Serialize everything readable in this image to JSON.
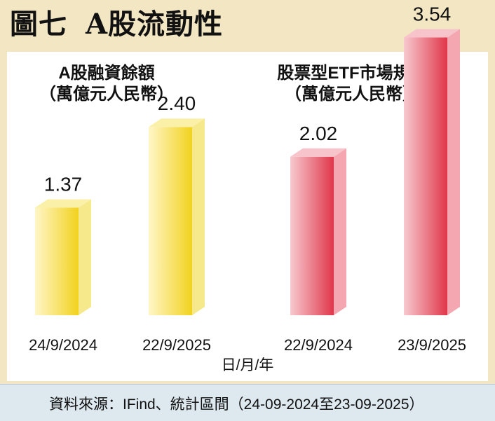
{
  "figure": {
    "title_prefix": "圖七",
    "title_main": "A股流動性",
    "x_unit": "日/月/年",
    "source": "資料來源：IFind、統計區間（24-09-2024至23-09-2025）"
  },
  "colors": {
    "yellow_front": "#f2d21e",
    "yellow_side": "#f6e98c",
    "yellow_top": "#fbf0a8",
    "red_front": "#e0364a",
    "red_side": "#f4a7b1",
    "red_top": "#f8c4cb"
  },
  "chart_data": [
    {
      "type": "bar",
      "title": [
        "A股融資餘額",
        "（萬億元人民幣）"
      ],
      "categories": [
        "24/9/2024",
        "22/9/2025"
      ],
      "values": [
        1.37,
        2.4
      ],
      "value_labels": [
        "1.37",
        "2.40"
      ],
      "color": "yellow",
      "xlabel": "日/月/年"
    },
    {
      "type": "bar",
      "title": [
        "股票型ETF市場規模",
        "（萬億元人民幣）"
      ],
      "categories": [
        "22/9/2024",
        "23/9/2025"
      ],
      "values": [
        2.02,
        3.54
      ],
      "value_labels": [
        "2.02",
        "3.54"
      ],
      "color": "red",
      "xlabel": "日/月/年"
    }
  ]
}
